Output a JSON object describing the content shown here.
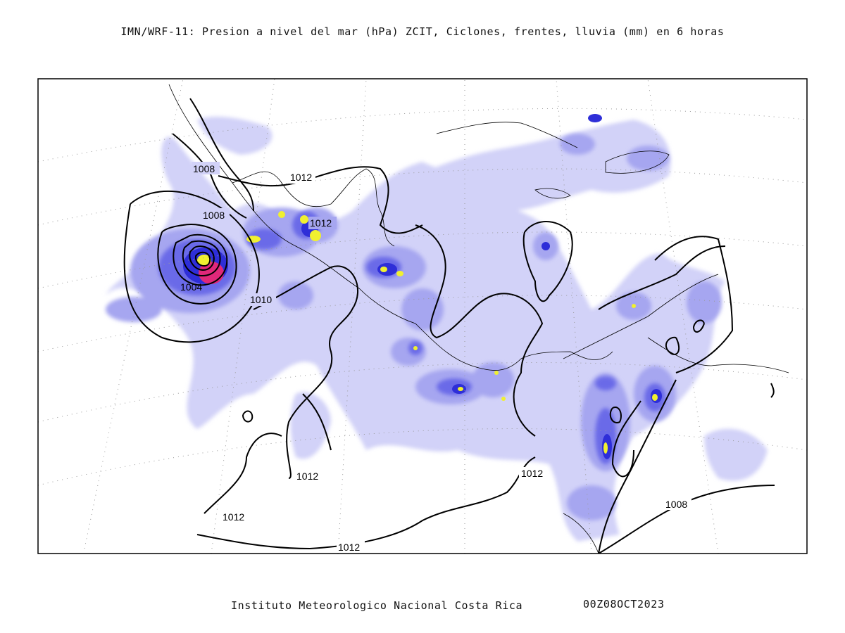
{
  "title": "IMN/WRF-11: Presion a nivel del mar (hPa) ZCIT, Ciclones, frentes, lluvia (mm) en 6 horas",
  "footer": {
    "institution": "Instituto Meteorologico Nacional Costa Rica",
    "timestamp": "00Z08OCT2023"
  },
  "isobar_labels": [
    "1008",
    "1012",
    "1008",
    "1012",
    "1004",
    "1010",
    "1012",
    "1012",
    "1012",
    "1008",
    "1012"
  ],
  "colors": {
    "rain_light": "#d2d2f8",
    "rain_medium": "#a6a6f0",
    "rain_heavy": "#6a6ae8",
    "rain_intense": "#2e2ed8",
    "rain_extreme_yellow": "#f0f030",
    "rain_extreme_magenta": "#e0287a",
    "isobar": "#000000",
    "frame": "#000000",
    "graticule": "#9a9a9a"
  }
}
